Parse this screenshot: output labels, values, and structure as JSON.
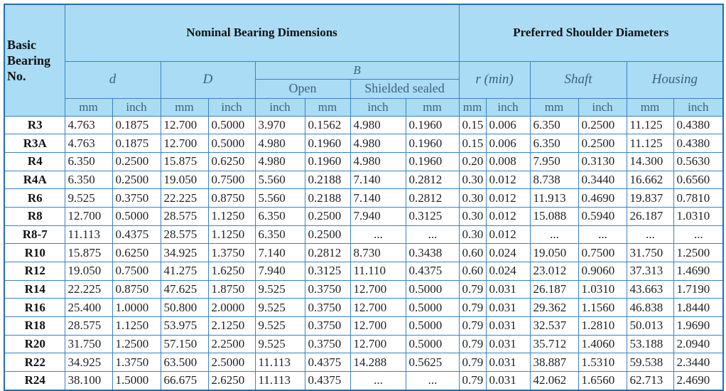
{
  "header": {
    "basic": "Basic Bearing No.",
    "nominal": "Nominal Bearing Dimensions",
    "preferred": "Preferred Shoulder Diameters",
    "d": "d",
    "D": "D",
    "B": "B",
    "open": "Open",
    "shielded": "Shielded sealed",
    "r": "r (min)",
    "shaft": "Shaft",
    "housing": "Housing",
    "units": [
      "mm",
      "inch",
      "mm",
      "inch",
      "inch",
      "mm",
      "inch",
      "mm",
      "mm",
      "inch",
      "mm",
      "inch",
      "mm",
      "inch"
    ]
  },
  "rows": [
    [
      "R3",
      "4.763",
      "0.1875",
      "12.700",
      "0.5000",
      "3.970",
      "0.1562",
      "4.980",
      "0.1960",
      "0.15",
      "0.006",
      "6.350",
      "0.2500",
      "11.125",
      "0.4380"
    ],
    [
      "R3A",
      "4.763",
      "0.1875",
      "12.700",
      "0.5000",
      "4.980",
      "0.1960",
      "4.980",
      "0.1960",
      "0.15",
      "0.006",
      "6.350",
      "0.2500",
      "11.125",
      "0.4380"
    ],
    [
      "R4",
      "6.350",
      "0.2500",
      "15.875",
      "0.6250",
      "4.980",
      "0.1960",
      "4.980",
      "0.1960",
      "0.20",
      "0.008",
      "7.950",
      "0.3130",
      "14.300",
      "0.5630"
    ],
    [
      "R4A",
      "6.350",
      "0.2500",
      "19.050",
      "0.7500",
      "5.560",
      "0.2188",
      "7.140",
      "0.2812",
      "0.30",
      "0.012",
      "8.738",
      "0.3440",
      "16.662",
      "0.6560"
    ],
    [
      "R6",
      "9.525",
      "0.3750",
      "22.225",
      "0.8750",
      "5.560",
      "0.2188",
      "7.140",
      "0.2812",
      "0.30",
      "0.012",
      "11.913",
      "0.4690",
      "19.837",
      "0.7810"
    ],
    [
      "R8",
      "12.700",
      "0.5000",
      "28.575",
      "1.1250",
      "6.350",
      "0.2500",
      "7.940",
      "0.3125",
      "0.30",
      "0.012",
      "15.088",
      "0.5940",
      "26.187",
      "1.0310"
    ],
    [
      "R8-7",
      "11.113",
      "0.4375",
      "28.575",
      "1.1250",
      "6.350",
      "0.2500",
      "...",
      "...",
      "0.30",
      "0.012",
      "...",
      "...",
      "...",
      "..."
    ],
    [
      "R10",
      "15.875",
      "0.6250",
      "34.925",
      "1.3750",
      "7.140",
      "0.2812",
      "8.730",
      "0.3438",
      "0.60",
      "0.024",
      "19.050",
      "0.7500",
      "31.750",
      "1.2500"
    ],
    [
      "R12",
      "19.050",
      "0.7500",
      "41.275",
      "1.6250",
      "7.940",
      "0.3125",
      "11.110",
      "0.4375",
      "0.60",
      "0.024",
      "23.012",
      "0.9060",
      "37.313",
      "1.4690"
    ],
    [
      "R14",
      "22.225",
      "0.8750",
      "47.625",
      "1.8750",
      "9.525",
      "0.3750",
      "12.700",
      "0.5000",
      "0.79",
      "0.031",
      "26.187",
      "1.0310",
      "43.663",
      "1.7190"
    ],
    [
      "R16",
      "25.400",
      "1.0000",
      "50.800",
      "2.0000",
      "9.525",
      "0.3750",
      "12.700",
      "0.5000",
      "0.79",
      "0.031",
      "29.362",
      "1.1560",
      "46.838",
      "1.8440"
    ],
    [
      "R18",
      "28.575",
      "1.1250",
      "53.975",
      "2.1250",
      "9.525",
      "0.3750",
      "12.700",
      "0.5000",
      "0.79",
      "0.031",
      "32.537",
      "1.2810",
      "50.013",
      "1.9690"
    ],
    [
      "R20",
      "31.750",
      "1.2500",
      "57.150",
      "2.2500",
      "9.525",
      "0.3750",
      "12.700",
      "0.5000",
      "0.79",
      "0.031",
      "35.712",
      "1.4060",
      "53.188",
      "2.0940"
    ],
    [
      "R22",
      "34.925",
      "1.3750",
      "63.500",
      "2.5000",
      "11.113",
      "0.4375",
      "14.288",
      "0.5625",
      "0.79",
      "0.031",
      "38.887",
      "1.5310",
      "59.538",
      "2.3440"
    ],
    [
      "R24",
      "38.100",
      "1.5000",
      "66.675",
      "2.6250",
      "11.113",
      "0.4375",
      "...",
      "...",
      "0.79",
      "0.031",
      "42.062",
      "1.6560",
      "62.713",
      "2.4690"
    ]
  ]
}
